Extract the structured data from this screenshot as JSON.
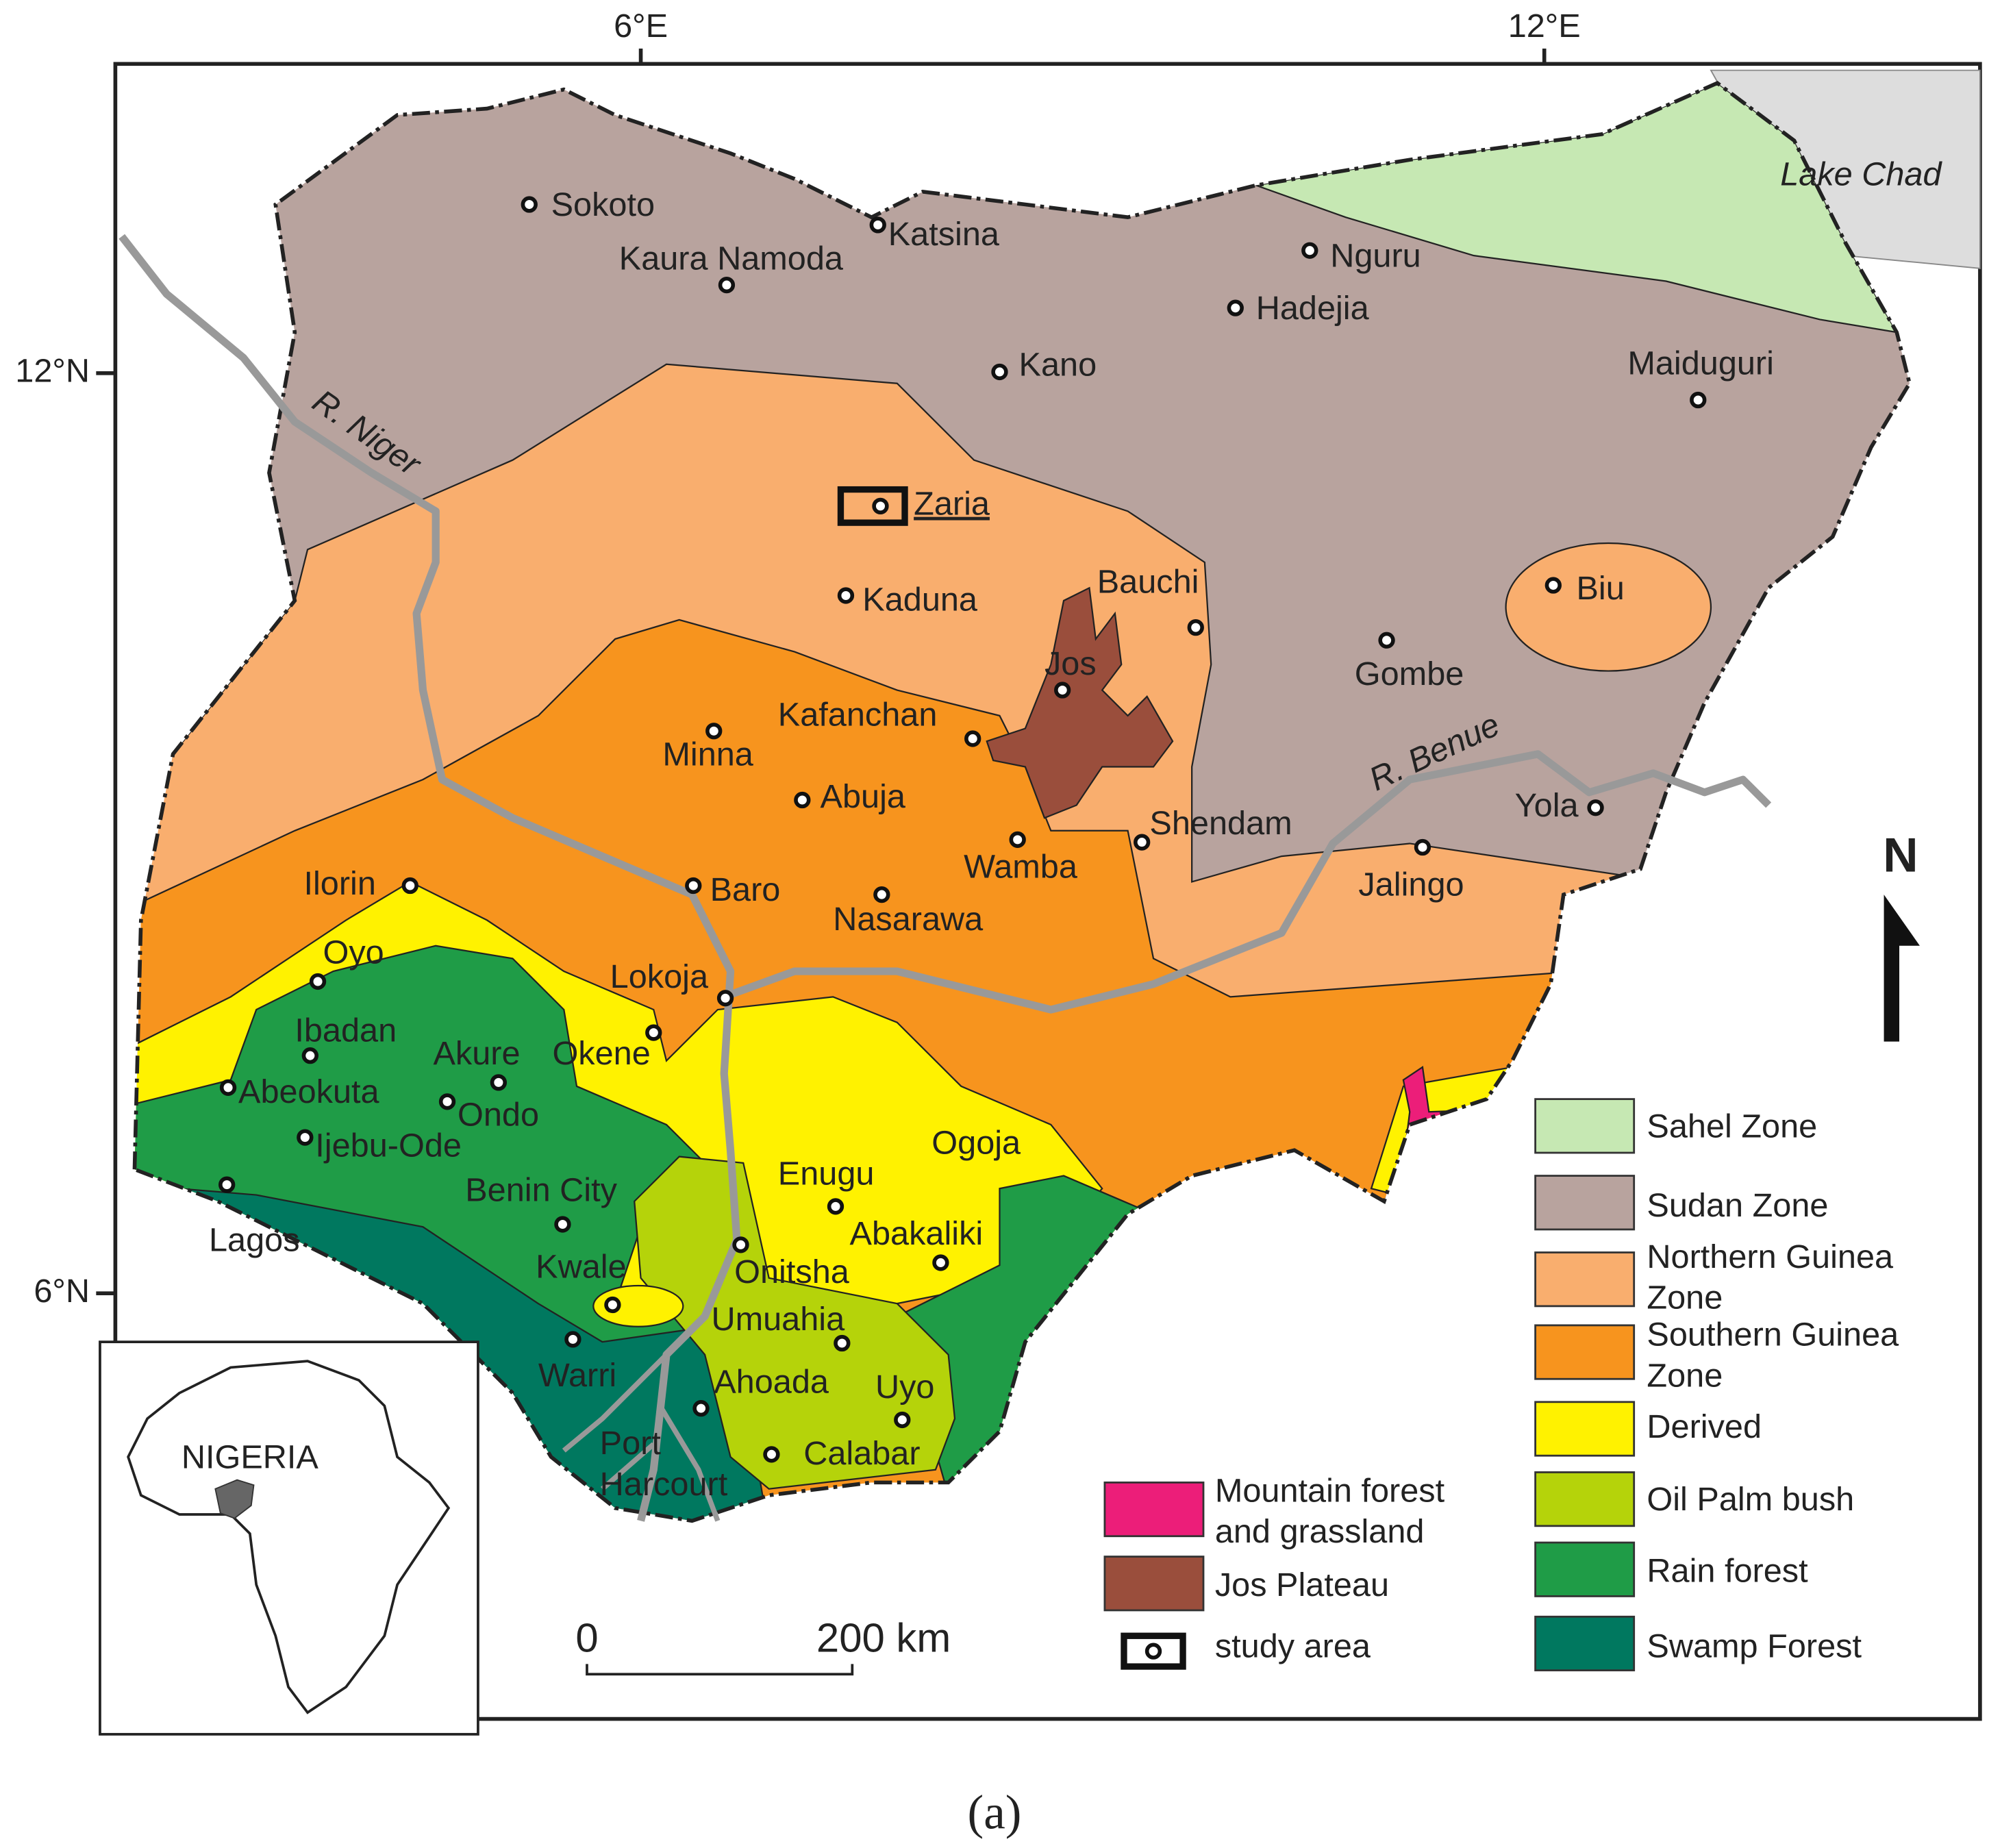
{
  "axes": {
    "longitude": [
      "6°E",
      "12°E"
    ],
    "latitude": [
      "12°N",
      "6°N"
    ]
  },
  "lake": "Lake Chad",
  "rivers": [
    "R. Niger",
    "R. Benue"
  ],
  "cities": [
    "Sokoto",
    "Katsina",
    "Kaura Namoda",
    "Nguru",
    "Hadejia",
    "Kano",
    "Maiduguri",
    "Zaria",
    "Kaduna",
    "Bauchi",
    "Biu",
    "Jos",
    "Gombe",
    "Kafanchan",
    "Minna",
    "Abuja",
    "Shendam",
    "Yola",
    "Wamba",
    "Jalingo",
    "Ilorin",
    "Baro",
    "Nasarawa",
    "Oyo",
    "Lokoja",
    "Ibadan",
    "Akure",
    "Okene",
    "Abeokuta",
    "Ondo",
    "Ijebu-Ode",
    "Ogoja",
    "Enugu",
    "Lagos",
    "Benin City",
    "Kwale",
    "Abakaliki",
    "Onitsha",
    "Umuahia",
    "Warri",
    "Ahoada",
    "Uyo",
    "Port Harcourt",
    "Calabar"
  ],
  "legend": [
    {
      "name": "Sahel Zone",
      "color": "#c6e8b3"
    },
    {
      "name": "Sudan Zone",
      "color": "#b8a39e"
    },
    {
      "name": "Northern Guinea Zone",
      "color": "#f9ae6e"
    },
    {
      "name": "Southern Guinea Zone",
      "color": "#f7941e"
    },
    {
      "name": "Derived",
      "color": "#fff200"
    },
    {
      "name": "Oil Palm bush",
      "color": "#b5d30a"
    },
    {
      "name": "Rain forest",
      "color": "#1f9c47"
    },
    {
      "name": "Swamp Forest",
      "color": "#00785f"
    },
    {
      "name": "Mountain forest and grassland",
      "color": "#ec1e79"
    },
    {
      "name": "Jos Plateau",
      "color": "#9a4e3c"
    },
    {
      "name": "study area"
    }
  ],
  "scale_bar": [
    "0",
    "200 km"
  ],
  "north": "N",
  "inset_label": "NIGERIA",
  "caption": "(a)"
}
